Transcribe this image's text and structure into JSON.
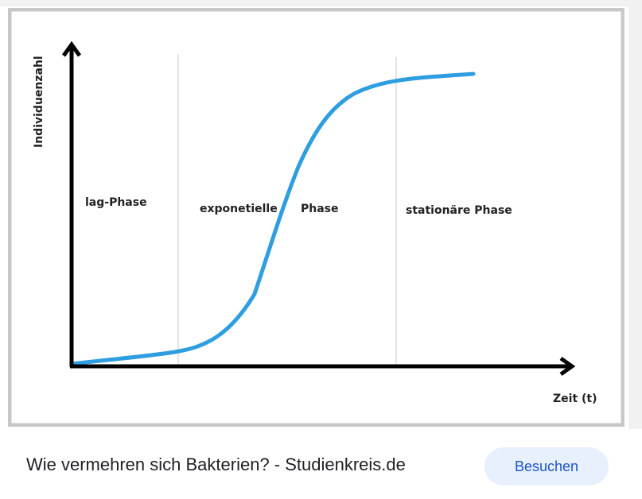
{
  "image": {
    "y_axis_label": "Individuenzahl",
    "x_axis_label": "Zeit (t)",
    "phases": [
      "lag-Phase",
      "exponetielle",
      "Phase",
      "stationäre Phase"
    ]
  },
  "caption": {
    "title": "Wie vermehren sich Bakterien? - Studienkreis.de",
    "button": "Besuchen"
  }
}
